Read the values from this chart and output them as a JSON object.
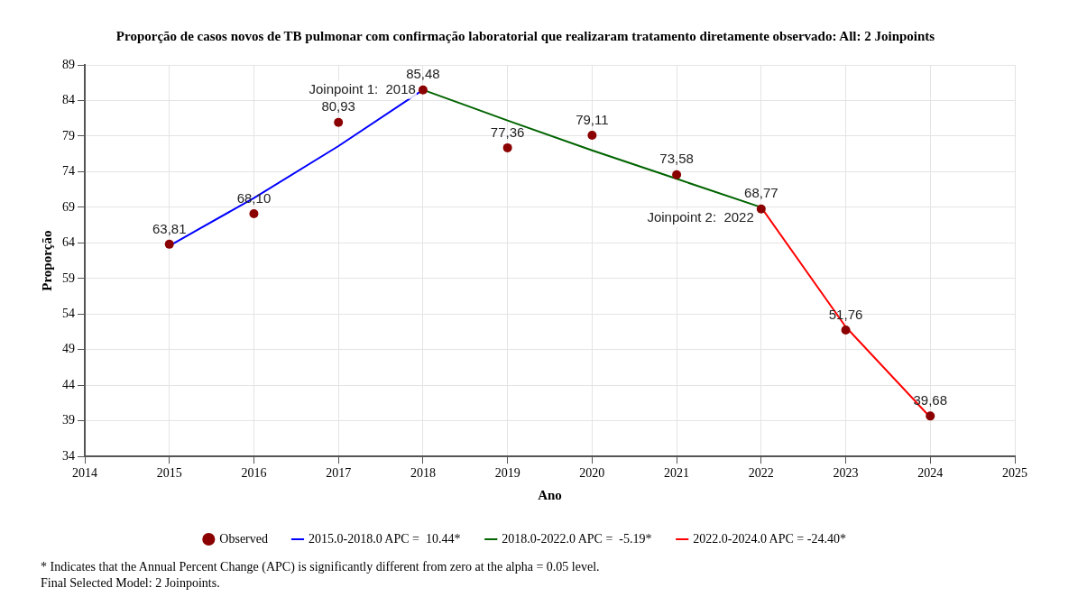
{
  "chart_data": {
    "type": "line",
    "title": "Proporção de casos novos de TB pulmonar com confirmação laboratorial que realizaram tratamento diretamente observado: All: 2 Joinpoints",
    "xlabel": "Ano",
    "ylabel": "Proporção",
    "xlim": [
      2014,
      2025
    ],
    "xticks": [
      2014,
      2015,
      2016,
      2017,
      2018,
      2019,
      2020,
      2021,
      2022,
      2023,
      2024,
      2025
    ],
    "ylim": [
      34,
      89
    ],
    "yticks": [
      34,
      39,
      44,
      49,
      54,
      59,
      64,
      69,
      74,
      79,
      84,
      89
    ],
    "grid": true,
    "legend": "bottom",
    "series": [
      {
        "name": "Observed",
        "type": "scatter",
        "marker": "circle",
        "color": "#8b0000",
        "x": [
          2015,
          2016,
          2017,
          2018,
          2019,
          2020,
          2021,
          2022,
          2023,
          2024
        ],
        "values": [
          63.81,
          68.1,
          80.93,
          85.48,
          77.36,
          79.11,
          73.58,
          68.77,
          51.76,
          39.68
        ],
        "value_labels": [
          "63,81",
          "68,10",
          "80,93",
          "85,48",
          "77,36",
          "79,11",
          "73,58",
          "68,77",
          "51,76",
          "39,68"
        ]
      },
      {
        "name": "2015.0-2018.0 APC =  10.44*",
        "type": "line",
        "marker": "none",
        "color": "#0000ff",
        "x": [
          2015,
          2016,
          2017,
          2018
        ],
        "values": [
          63.6,
          70.3,
          77.6,
          85.5
        ]
      },
      {
        "name": "2018.0-2022.0 APC =  -5.19*",
        "type": "line",
        "marker": "none",
        "color": "#006400",
        "x": [
          2018,
          2019,
          2020,
          2021,
          2022
        ],
        "values": [
          85.5,
          81.2,
          77.0,
          73.0,
          69.0
        ]
      },
      {
        "name": "2022.0-2024.0 APC = -24.40*",
        "type": "line",
        "marker": "none",
        "color": "#ff0000",
        "x": [
          2022,
          2023,
          2024
        ],
        "values": [
          69.0,
          52.2,
          39.5
        ]
      }
    ],
    "annotations": [
      {
        "text": "Joinpoint 1:  2018",
        "x": 2018,
        "y": 85.48
      },
      {
        "text": "Joinpoint 2:  2022",
        "x": 2022,
        "y": 68.77
      },
      "* Indicates that the Annual Percent Change (APC) is significantly different from zero at the alpha = 0.05 level.",
      "Final Selected Model: 2 Joinpoints."
    ]
  }
}
